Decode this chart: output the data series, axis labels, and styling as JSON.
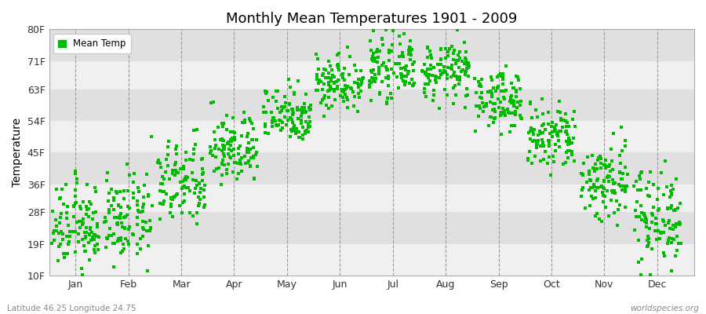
{
  "title": "Monthly Mean Temperatures 1901 - 2009",
  "ylabel": "Temperature",
  "ytick_labels": [
    "10F",
    "19F",
    "28F",
    "36F",
    "45F",
    "54F",
    "63F",
    "71F",
    "80F"
  ],
  "ytick_values": [
    10,
    19,
    28,
    36,
    45,
    54,
    63,
    71,
    80
  ],
  "ylim": [
    10,
    80
  ],
  "months": [
    "Jan",
    "Feb",
    "Mar",
    "Apr",
    "May",
    "Jun",
    "Jul",
    "Aug",
    "Sep",
    "Oct",
    "Nov",
    "Dec"
  ],
  "dot_color": "#00bb00",
  "background_color": "#f0f0f0",
  "plot_bg_color": "#f0f0f0",
  "band_color_light": "#f0f0f0",
  "band_color_dark": "#e0e0e0",
  "legend_label": "Mean Temp",
  "bottom_left": "Latitude 46.25 Longitude 24.75",
  "bottom_right": "worldspecies.org",
  "mean_temps_F": [
    24,
    26,
    36,
    46,
    56,
    65,
    69,
    68,
    60,
    49,
    37,
    27
  ],
  "std_temps_F": [
    6,
    6,
    6,
    5,
    4,
    4,
    4,
    4,
    4,
    5,
    6,
    7
  ],
  "n_years": 109,
  "dot_size": 8
}
